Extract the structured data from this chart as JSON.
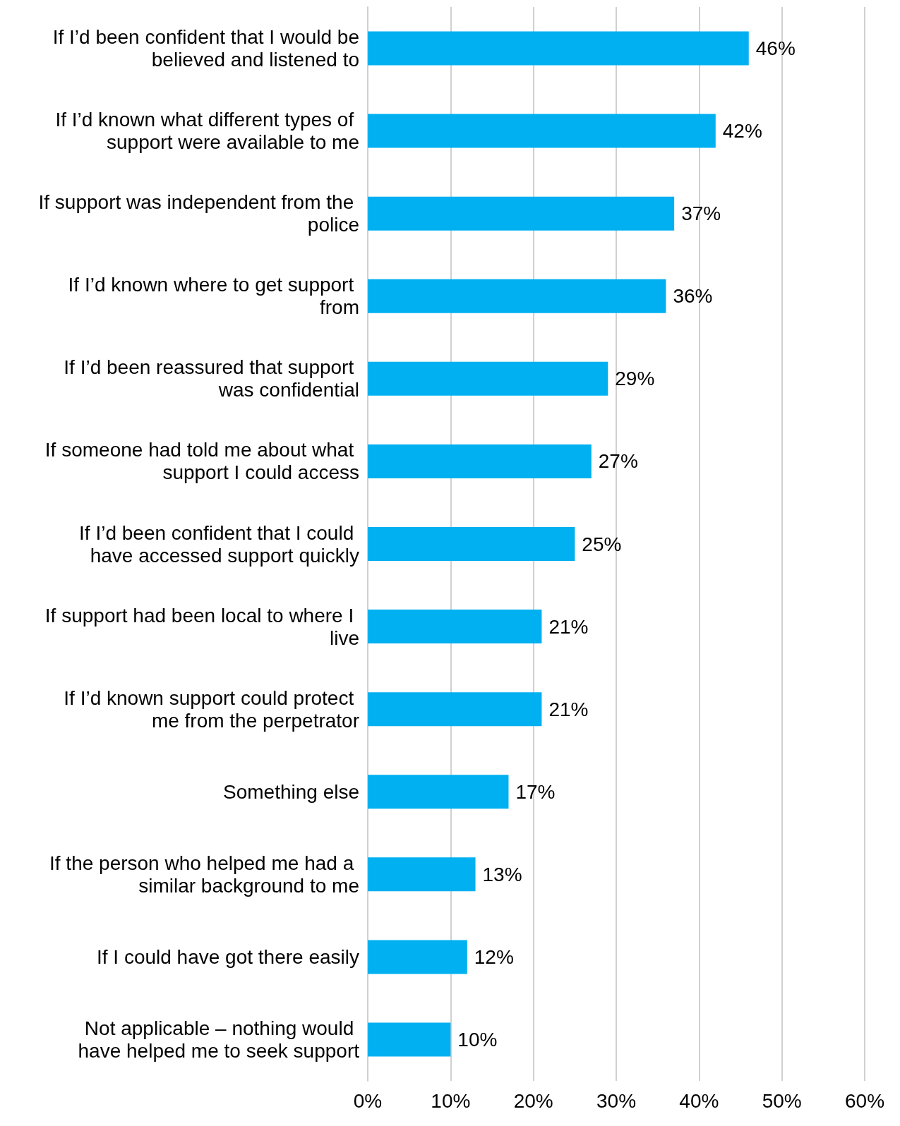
{
  "chart_data": {
    "type": "bar",
    "orientation": "horizontal",
    "categories": [
      "If I’d been confident that I would be believed and listened to",
      "If I’d known what different types of support were available to me",
      "If support was independent from the police",
      "If I’d known where to get support from",
      "If I’d been reassured that support was confidential",
      "If someone had told me about what support I could access",
      "If I’d been confident that I could have accessed support quickly",
      "If support had been local to where I live",
      "If I’d known support could protect me from the perpetrator",
      "Something else",
      "If the person who helped me had a similar background to me",
      "If I could have got there easily",
      "Not applicable – nothing would have helped me to seek support"
    ],
    "values": [
      46,
      42,
      37,
      36,
      29,
      27,
      25,
      21,
      21,
      17,
      13,
      12,
      10
    ],
    "value_labels": [
      "46%",
      "42%",
      "37%",
      "36%",
      "29%",
      "27%",
      "25%",
      "21%",
      "21%",
      "17%",
      "13%",
      "12%",
      "10%"
    ],
    "color": "#00b0f0",
    "xlim": [
      0,
      60
    ],
    "xticks": [
      {
        "value": 0,
        "label": "0%"
      },
      {
        "value": 10,
        "label": "10%"
      },
      {
        "value": 20,
        "label": "20%"
      },
      {
        "value": 30,
        "label": "30%"
      },
      {
        "value": 40,
        "label": "40%"
      },
      {
        "value": 50,
        "label": "50%"
      },
      {
        "value": 60,
        "label": "60%"
      }
    ],
    "grid": "x"
  }
}
